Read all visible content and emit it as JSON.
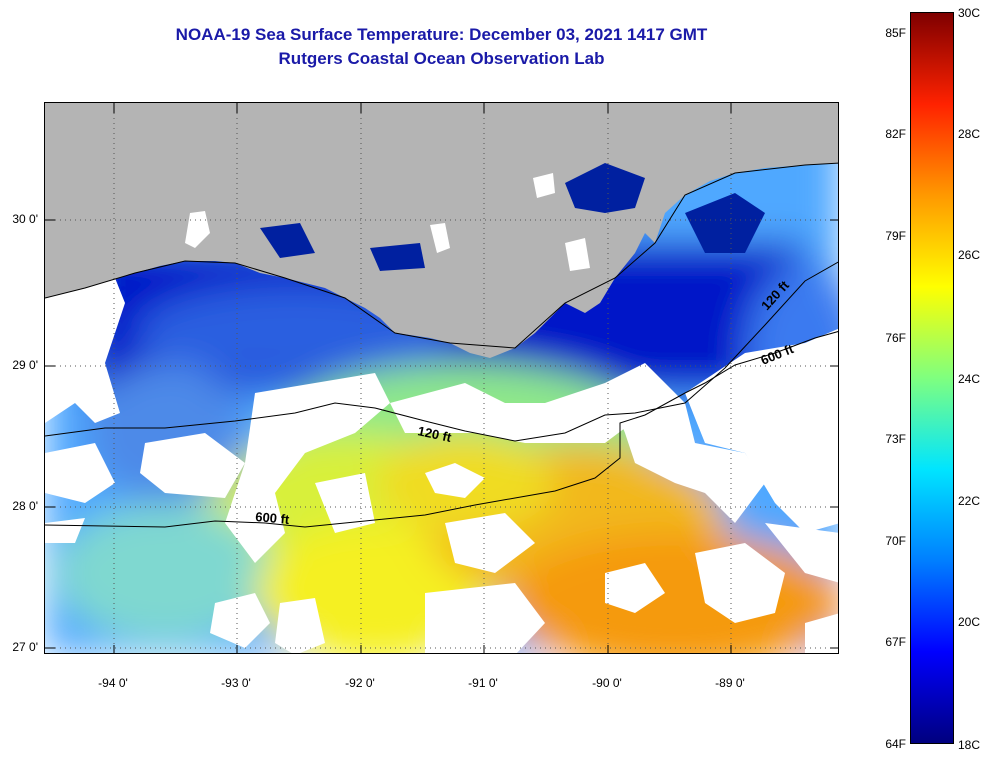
{
  "title": {
    "line1": "NOAA-19 Sea Surface Temperature:  December 03, 2021 1417 GMT",
    "line2": "Rutgers Coastal Ocean Observation Lab"
  },
  "axes": {
    "lat_labels": [
      "30 0'",
      "29 0'",
      "28 0'",
      "27 0'"
    ],
    "lon_labels": [
      "-94 0'",
      "-93 0'",
      "-92 0'",
      "-91 0'",
      "-90 0'",
      "-89 0'"
    ]
  },
  "contours": {
    "label_120_west": "120 ft",
    "label_600_west": "600 ft",
    "label_120_east": "120 ft",
    "label_600_east": "600 ft"
  },
  "colorbar": {
    "fahrenheit": [
      "85F",
      "82F",
      "79F",
      "76F",
      "73F",
      "70F",
      "67F",
      "64F"
    ],
    "celsius": [
      "30C",
      "28C",
      "26C",
      "24C",
      "22C",
      "20C",
      "18C"
    ],
    "stops": [
      "#00007f",
      "#0000ff",
      "#007fff",
      "#00e5ff",
      "#7fff7f",
      "#ffff00",
      "#ff9900",
      "#ff2200",
      "#7f0000"
    ]
  },
  "colors": {
    "title": "#1a1aa8",
    "land": "#b4b4b4",
    "cloud": "#ffffff"
  }
}
